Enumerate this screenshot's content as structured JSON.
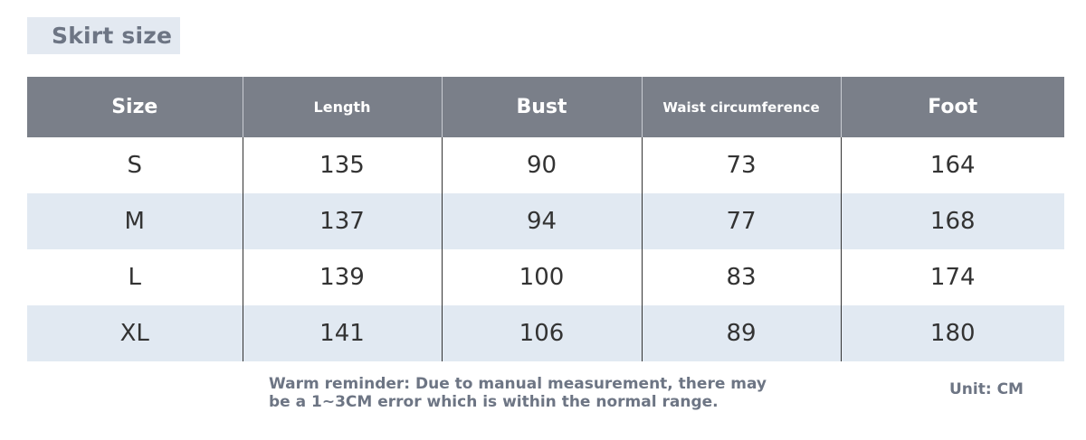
{
  "title": "Skirt size",
  "table": {
    "headers": [
      "Size",
      "Length",
      "Bust",
      "Waist circumference",
      "Foot"
    ],
    "rows": [
      [
        "S",
        "135",
        "90",
        "73",
        "164"
      ],
      [
        "M",
        "137",
        "94",
        "77",
        "168"
      ],
      [
        "L",
        "139",
        "100",
        "83",
        "174"
      ],
      [
        "XL",
        "141",
        "106",
        "89",
        "180"
      ]
    ]
  },
  "note": {
    "line1": "Warm reminder: Due to manual measurement, there may",
    "line2": "be a 1~3CM error which is within the normal range."
  },
  "unit": "Unit: CM",
  "colors": {
    "header_bg": "#7a7f89",
    "stripe_bg": "#e1e9f2",
    "title_bg": "#e3e9f1",
    "accent_text": "#6d7584"
  }
}
